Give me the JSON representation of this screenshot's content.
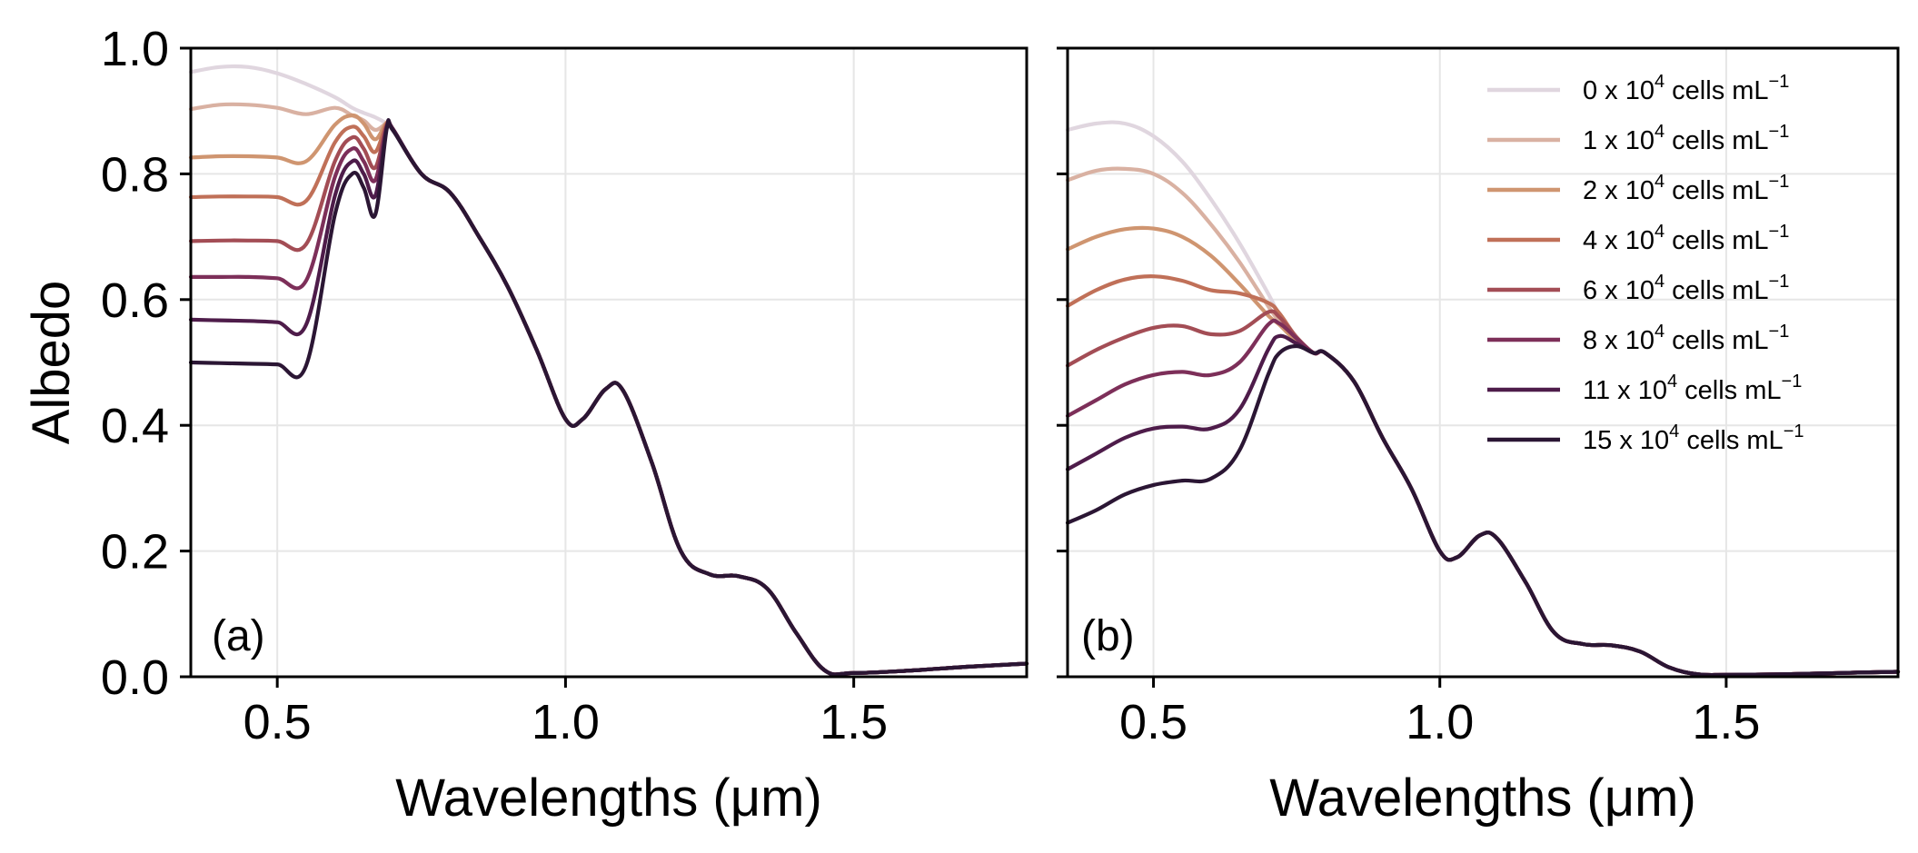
{
  "colors": {
    "series": [
      "#e0d6df",
      "#d9b1a2",
      "#cf9570",
      "#c07058",
      "#a34d55",
      "#7d2f59",
      "#4e1c4a",
      "#2b1634"
    ],
    "grid": "#e6e6e6",
    "axes": "#000000"
  },
  "chart_data": [
    {
      "type": "line",
      "panel_label": "(a)",
      "xlabel": "Wavelengths (μm)",
      "ylabel": "Albedo",
      "xlim": [
        0.35,
        1.8
      ],
      "ylim": [
        0.0,
        1.0
      ],
      "xticks": [
        "0.5",
        "1.0",
        "1.5"
      ],
      "yticks": [
        "0.0",
        "0.2",
        "0.4",
        "0.6",
        "0.8",
        "1.0"
      ],
      "grid": true,
      "x": [
        0.35,
        0.4,
        0.45,
        0.5,
        0.55,
        0.6,
        0.63,
        0.65,
        0.67,
        0.69,
        0.7,
        0.75,
        0.8,
        0.85,
        0.9,
        0.95,
        1.0,
        1.03,
        1.07,
        1.1,
        1.15,
        1.2,
        1.25,
        1.3,
        1.35,
        1.4,
        1.45,
        1.5,
        1.6,
        1.7,
        1.8
      ],
      "series": [
        {
          "name": "0 x 10^4 cells mL^-1",
          "values": [
            0.962,
            0.97,
            0.97,
            0.96,
            0.943,
            0.922,
            0.905,
            0.897,
            0.89,
            0.88,
            0.872,
            0.8,
            0.77,
            0.7,
            0.62,
            0.52,
            0.41,
            0.41,
            0.458,
            0.455,
            0.34,
            0.2,
            0.163,
            0.16,
            0.14,
            0.07,
            0.01,
            0.006,
            0.01,
            0.016,
            0.021
          ]
        },
        {
          "name": "1 x 10^4 cells mL^-1",
          "values": [
            0.903,
            0.91,
            0.91,
            0.905,
            0.895,
            0.905,
            0.893,
            0.885,
            0.87,
            0.88,
            0.872,
            0.8,
            0.77,
            0.7,
            0.62,
            0.52,
            0.41,
            0.41,
            0.458,
            0.455,
            0.34,
            0.2,
            0.163,
            0.16,
            0.14,
            0.07,
            0.01,
            0.006,
            0.01,
            0.016,
            0.021
          ]
        },
        {
          "name": "2 x 10^4 cells mL^-1",
          "values": [
            0.826,
            0.828,
            0.828,
            0.826,
            0.82,
            0.878,
            0.893,
            0.88,
            0.855,
            0.882,
            0.872,
            0.8,
            0.77,
            0.7,
            0.62,
            0.52,
            0.41,
            0.41,
            0.458,
            0.455,
            0.34,
            0.2,
            0.163,
            0.16,
            0.14,
            0.07,
            0.01,
            0.006,
            0.01,
            0.016,
            0.021
          ]
        },
        {
          "name": "4 x 10^4 cells mL^-1",
          "values": [
            0.763,
            0.764,
            0.764,
            0.763,
            0.757,
            0.85,
            0.875,
            0.86,
            0.835,
            0.88,
            0.872,
            0.8,
            0.77,
            0.7,
            0.62,
            0.52,
            0.41,
            0.41,
            0.458,
            0.455,
            0.34,
            0.2,
            0.163,
            0.16,
            0.14,
            0.07,
            0.01,
            0.006,
            0.01,
            0.016,
            0.021
          ]
        },
        {
          "name": "6 x 10^4 cells mL^-1",
          "values": [
            0.693,
            0.694,
            0.694,
            0.693,
            0.688,
            0.82,
            0.858,
            0.84,
            0.81,
            0.878,
            0.872,
            0.8,
            0.77,
            0.7,
            0.62,
            0.52,
            0.41,
            0.41,
            0.458,
            0.455,
            0.34,
            0.2,
            0.163,
            0.16,
            0.14,
            0.07,
            0.01,
            0.006,
            0.01,
            0.016,
            0.021
          ]
        },
        {
          "name": "8 x 10^4 cells mL^-1",
          "values": [
            0.636,
            0.636,
            0.636,
            0.634,
            0.63,
            0.795,
            0.84,
            0.82,
            0.79,
            0.876,
            0.872,
            0.8,
            0.77,
            0.7,
            0.62,
            0.52,
            0.41,
            0.41,
            0.458,
            0.455,
            0.34,
            0.2,
            0.163,
            0.16,
            0.14,
            0.07,
            0.01,
            0.006,
            0.01,
            0.016,
            0.021
          ]
        },
        {
          "name": "11 x 10^4 cells mL^-1",
          "values": [
            0.568,
            0.567,
            0.566,
            0.564,
            0.56,
            0.765,
            0.82,
            0.8,
            0.765,
            0.874,
            0.872,
            0.8,
            0.77,
            0.7,
            0.62,
            0.52,
            0.41,
            0.41,
            0.458,
            0.455,
            0.34,
            0.2,
            0.163,
            0.16,
            0.14,
            0.07,
            0.01,
            0.006,
            0.01,
            0.016,
            0.021
          ]
        },
        {
          "name": "15 x 10^4 cells mL^-1",
          "values": [
            0.5,
            0.499,
            0.498,
            0.497,
            0.495,
            0.735,
            0.8,
            0.778,
            0.735,
            0.872,
            0.87,
            0.8,
            0.77,
            0.7,
            0.62,
            0.52,
            0.41,
            0.41,
            0.458,
            0.455,
            0.34,
            0.2,
            0.163,
            0.16,
            0.14,
            0.07,
            0.01,
            0.006,
            0.01,
            0.016,
            0.021
          ]
        }
      ]
    },
    {
      "type": "line",
      "panel_label": "(b)",
      "xlabel": "Wavelengths (μm)",
      "ylabel": "",
      "xlim": [
        0.35,
        1.8
      ],
      "ylim": [
        0.0,
        1.0
      ],
      "xticks": [
        "0.5",
        "1.0",
        "1.5"
      ],
      "yticks": [],
      "grid": true,
      "legend_loc": "upper right",
      "legend": [
        {
          "base": "0 x 10",
          "exp": "4",
          "unit": " cells mL",
          "unit_exp": "−1"
        },
        {
          "base": "1 x 10",
          "exp": "4",
          "unit": " cells mL",
          "unit_exp": "−1"
        },
        {
          "base": "2 x 10",
          "exp": "4",
          "unit": " cells mL",
          "unit_exp": "−1"
        },
        {
          "base": "4 x 10",
          "exp": "4",
          "unit": " cells mL",
          "unit_exp": "−1"
        },
        {
          "base": "6 x 10",
          "exp": "4",
          "unit": " cells mL",
          "unit_exp": "−1"
        },
        {
          "base": "8 x 10",
          "exp": "4",
          "unit": " cells mL",
          "unit_exp": "−1"
        },
        {
          "base": "11 x 10",
          "exp": "4",
          "unit": " cells mL",
          "unit_exp": "−1"
        },
        {
          "base": "15 x 10",
          "exp": "4",
          "unit": " cells mL",
          "unit_exp": "−1"
        }
      ],
      "x": [
        0.35,
        0.4,
        0.45,
        0.5,
        0.55,
        0.6,
        0.65,
        0.7,
        0.72,
        0.75,
        0.78,
        0.8,
        0.85,
        0.9,
        0.95,
        1.0,
        1.03,
        1.07,
        1.1,
        1.15,
        1.2,
        1.25,
        1.3,
        1.35,
        1.4,
        1.45,
        1.5,
        1.6,
        1.7,
        1.8
      ],
      "series": [
        {
          "name": "0 x 10^4 cells mL^-1",
          "values": [
            0.87,
            0.88,
            0.88,
            0.86,
            0.82,
            0.76,
            0.69,
            0.61,
            0.575,
            0.54,
            0.515,
            0.515,
            0.47,
            0.38,
            0.3,
            0.2,
            0.19,
            0.225,
            0.22,
            0.15,
            0.07,
            0.052,
            0.05,
            0.04,
            0.015,
            0.004,
            0.003,
            0.004,
            0.006,
            0.008
          ]
        },
        {
          "name": "1 x 10^4 cells mL^-1",
          "values": [
            0.79,
            0.805,
            0.808,
            0.8,
            0.77,
            0.72,
            0.66,
            0.59,
            0.565,
            0.535,
            0.515,
            0.515,
            0.47,
            0.38,
            0.3,
            0.2,
            0.19,
            0.225,
            0.22,
            0.15,
            0.07,
            0.052,
            0.05,
            0.04,
            0.015,
            0.004,
            0.003,
            0.004,
            0.006,
            0.008
          ]
        },
        {
          "name": "2 x 10^4 cells mL^-1",
          "values": [
            0.68,
            0.7,
            0.712,
            0.713,
            0.7,
            0.67,
            0.625,
            0.575,
            0.56,
            0.533,
            0.515,
            0.515,
            0.47,
            0.38,
            0.3,
            0.2,
            0.19,
            0.225,
            0.22,
            0.15,
            0.07,
            0.052,
            0.05,
            0.04,
            0.015,
            0.004,
            0.003,
            0.004,
            0.006,
            0.008
          ]
        },
        {
          "name": "4 x 10^4 cells mL^-1",
          "values": [
            0.59,
            0.615,
            0.632,
            0.637,
            0.63,
            0.615,
            0.61,
            0.595,
            0.578,
            0.54,
            0.515,
            0.515,
            0.47,
            0.38,
            0.3,
            0.2,
            0.19,
            0.225,
            0.22,
            0.15,
            0.07,
            0.052,
            0.05,
            0.04,
            0.015,
            0.004,
            0.003,
            0.004,
            0.006,
            0.008
          ]
        },
        {
          "name": "6 x 10^4 cells mL^-1",
          "values": [
            0.495,
            0.52,
            0.54,
            0.555,
            0.558,
            0.545,
            0.55,
            0.58,
            0.572,
            0.54,
            0.515,
            0.515,
            0.47,
            0.38,
            0.3,
            0.2,
            0.19,
            0.225,
            0.22,
            0.15,
            0.07,
            0.052,
            0.05,
            0.04,
            0.015,
            0.004,
            0.003,
            0.004,
            0.006,
            0.008
          ]
        },
        {
          "name": "8 x 10^4 cells mL^-1",
          "values": [
            0.415,
            0.44,
            0.465,
            0.48,
            0.485,
            0.48,
            0.5,
            0.56,
            0.562,
            0.538,
            0.515,
            0.515,
            0.47,
            0.38,
            0.3,
            0.2,
            0.19,
            0.225,
            0.22,
            0.15,
            0.07,
            0.052,
            0.05,
            0.04,
            0.015,
            0.004,
            0.003,
            0.004,
            0.006,
            0.008
          ]
        },
        {
          "name": "11 x 10^4 cells mL^-1",
          "values": [
            0.33,
            0.355,
            0.38,
            0.395,
            0.398,
            0.395,
            0.425,
            0.52,
            0.542,
            0.53,
            0.515,
            0.515,
            0.47,
            0.38,
            0.3,
            0.2,
            0.19,
            0.225,
            0.22,
            0.15,
            0.07,
            0.052,
            0.05,
            0.04,
            0.015,
            0.004,
            0.003,
            0.004,
            0.006,
            0.008
          ]
        },
        {
          "name": "15 x 10^4 cells mL^-1",
          "values": [
            0.245,
            0.265,
            0.29,
            0.305,
            0.312,
            0.315,
            0.36,
            0.48,
            0.515,
            0.526,
            0.515,
            0.515,
            0.47,
            0.38,
            0.3,
            0.2,
            0.19,
            0.225,
            0.22,
            0.15,
            0.07,
            0.052,
            0.05,
            0.04,
            0.015,
            0.004,
            0.003,
            0.004,
            0.006,
            0.008
          ]
        }
      ]
    }
  ]
}
